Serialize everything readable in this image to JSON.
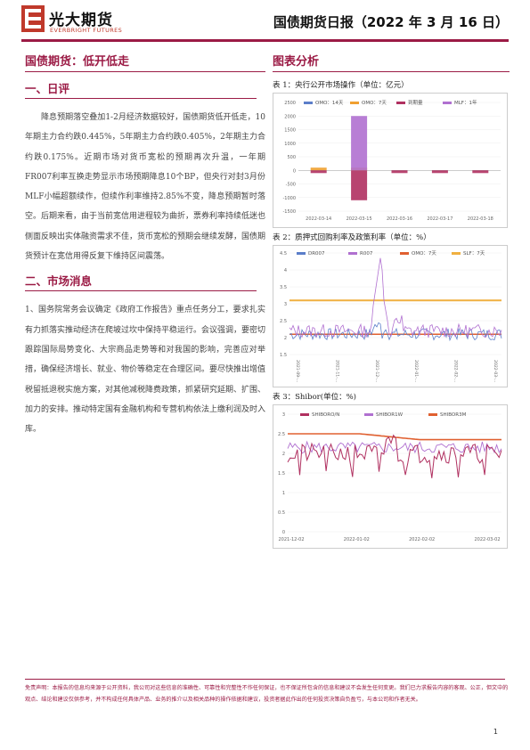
{
  "header": {
    "logo_cn": "光大期货",
    "logo_en": "EVERBRIGHT FUTURES",
    "report_title": "国债期货日报（2022 年 3 月 16 日）"
  },
  "left": {
    "main_heading": "国债期货：低开低走",
    "section1_heading": "一、日评",
    "section1_text": "降息预期落空叠加1-2月经济数据较好，国债期货低开低走，10年期主力合约跌0.445%，5年期主力合约跌0.405%，2年期主力合约跌0.175%。近期市场对货币宽松的预期再次升温，一年期FR007利率互换走势显示市场预期降息10个BP，但央行对封3月份MLF小幅超额续作，但续作利率维持2.85%不变，降息预期暂时落空。后期来看，由于当前宽信用进程较为曲折，票券利率持续低迷也侧面反映出实体融资需求不佳，货币宽松的预期会继续发酵，国债期货预计在宽信用得反复下维持区间震荡。",
    "section2_heading": "二、市场消息",
    "section2_text": "1、国务院常务会议确定《政府工作报告》重点任务分工，要求扎实有力抓落实推动经济在爬坡过坎中保持平稳运行。会议强调，要密切跟踪国际局势变化、大宗商品走势等和对我国的影响，完善应对举措，确保经济增长、就业、物价等稳定在合理区间。要尽快推出增值税留抵退税实施方案，对其他减税降费政策，抓紧研究延期、扩围、加力的安排。推动特定国有金融机构和专营机构依法上缴利润及时入库。"
  },
  "right": {
    "heading": "图表分析",
    "chart1_title": "表 1：央行公开市场操作（单位：亿元）",
    "chart2_title": "表 2：质押式回购利率及政策利率（单位：%）",
    "chart3_title": "表 3：Shibor(单位：%)"
  },
  "chart_data": [
    {
      "type": "bar",
      "title": "表 1：央行公开市场操作（单位：亿元）",
      "categories": [
        "2022-03-14",
        "2022-03-15",
        "2022-03-16",
        "2022-03-17",
        "2022-03-18"
      ],
      "series": [
        {
          "name": "OMO：14天",
          "color": "#5b7ec9",
          "values": [
            0,
            0,
            0,
            0,
            0
          ]
        },
        {
          "name": "OMO：7天",
          "color": "#f0a030",
          "values": [
            100,
            100,
            0,
            0,
            0
          ]
        },
        {
          "name": "到期量",
          "color": "#b03060",
          "values": [
            -100,
            -1100,
            -100,
            -100,
            -100
          ]
        },
        {
          "name": "MLF：1年",
          "color": "#b070d0",
          "values": [
            0,
            2000,
            0,
            0,
            0
          ]
        }
      ],
      "yticks": [
        2500,
        2000,
        1500,
        1000,
        500,
        0,
        -500,
        -1000,
        -1500
      ],
      "ylim": [
        -1500,
        2500
      ]
    },
    {
      "type": "line",
      "title": "表 2：质押式回购利率及政策利率（单位：%）",
      "series_names": [
        "DR007",
        "R007",
        "OMO：7天",
        "SLF：7天"
      ],
      "series_colors": [
        "#5b7ec9",
        "#b070d0",
        "#e06030",
        "#f0b040"
      ],
      "yticks": [
        1.5,
        2,
        2.5,
        3,
        3.5,
        4,
        4.5
      ],
      "ylim": [
        1.5,
        4.5
      ],
      "xticks": [
        "2021-09-...",
        "2021-11-...",
        "2021-12-...",
        "2022-01-...",
        "2022-02-...",
        "2022-03-..."
      ],
      "slf_level": 3.1,
      "omo_level": 2.1,
      "dr007_range": [
        1.9,
        2.4
      ],
      "r007_spike_peak": 4.0
    },
    {
      "type": "line",
      "title": "表 3：Shibor(单位：%)",
      "series_names": [
        "SHIBORO/N",
        "SHIBOR1W",
        "SHIBOR3M"
      ],
      "series_colors": [
        "#b03060",
        "#b070d0",
        "#e06030"
      ],
      "yticks": [
        0,
        0.5,
        1,
        1.5,
        2,
        2.5,
        3
      ],
      "ylim": [
        0,
        3
      ],
      "xticks": [
        "2021-12-02",
        "2022-01-02",
        "2022-02-02",
        "2022-03-02"
      ],
      "shibor3m_start": 2.5,
      "shibor3m_end": 2.35
    }
  ],
  "footer": {
    "disclaimer": "免责声明：本报告的信息均来源于公开资料，我公司对这些信息的准确性、可靠性和完整性不作任何保证，也不保证所包含的信息和建议不会发生任何变更。我们已力求报告内容的客观、公正，但文中的观点、结论和建议仅供参考，并不构成任何具体产品、业务的推介以及相关品种的操作依据和建议，投资者据此作出的任何投资决策自负盈亏，与本公司和作者无关。",
    "page_number": "1"
  }
}
